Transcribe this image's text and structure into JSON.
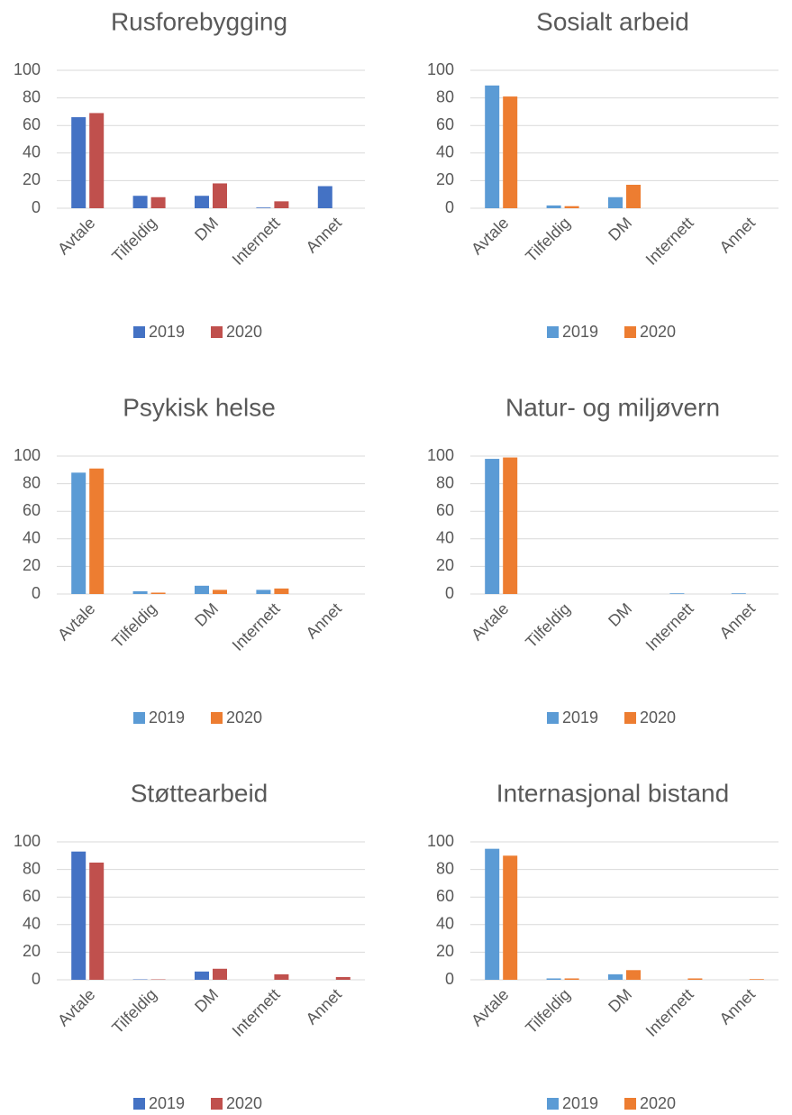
{
  "chart_data": [
    {
      "type": "bar",
      "title": "Rusforebygging",
      "categories": [
        "Avtale",
        "Tilfeldig",
        "DM",
        "Internett",
        "Annet"
      ],
      "series": [
        {
          "name": "2019",
          "color": "#4472c4",
          "values": [
            66,
            9,
            9,
            0.5,
            16
          ]
        },
        {
          "name": "2020",
          "color": "#c0504d",
          "values": [
            69,
            8,
            18,
            5,
            0
          ]
        }
      ],
      "ylim": [
        0,
        100
      ],
      "yticks": [
        0,
        20,
        40,
        60,
        80,
        100
      ],
      "grid": true
    },
    {
      "type": "bar",
      "title": "Sosialt arbeid",
      "categories": [
        "Avtale",
        "Tilfeldig",
        "DM",
        "Internett",
        "Annet"
      ],
      "series": [
        {
          "name": "2019",
          "color": "#5b9bd5",
          "values": [
            89,
            2,
            8,
            0,
            0
          ]
        },
        {
          "name": "2020",
          "color": "#ed7d31",
          "values": [
            81,
            1.5,
            17,
            0,
            0
          ]
        }
      ],
      "ylim": [
        0,
        100
      ],
      "yticks": [
        0,
        20,
        40,
        60,
        80,
        100
      ],
      "grid": true
    },
    {
      "type": "bar",
      "title": "Psykisk helse",
      "categories": [
        "Avtale",
        "Tilfeldig",
        "DM",
        "Internett",
        "Annet"
      ],
      "series": [
        {
          "name": "2019",
          "color": "#5b9bd5",
          "values": [
            88,
            2,
            6,
            3,
            0
          ]
        },
        {
          "name": "2020",
          "color": "#ed7d31",
          "values": [
            91,
            1,
            3,
            4,
            0
          ]
        }
      ],
      "ylim": [
        0,
        100
      ],
      "yticks": [
        0,
        20,
        40,
        60,
        80,
        100
      ],
      "grid": true
    },
    {
      "type": "bar",
      "title": "Natur- og miljøvern",
      "categories": [
        "Avtale",
        "Tilfeldig",
        "DM",
        "Internett",
        "Annet"
      ],
      "series": [
        {
          "name": "2019",
          "color": "#5b9bd5",
          "values": [
            98,
            0,
            0,
            0.5,
            0.5
          ]
        },
        {
          "name": "2020",
          "color": "#ed7d31",
          "values": [
            99,
            0,
            0,
            0,
            0
          ]
        }
      ],
      "ylim": [
        0,
        100
      ],
      "yticks": [
        0,
        20,
        40,
        60,
        80,
        100
      ],
      "grid": true
    },
    {
      "type": "bar",
      "title": "Støttearbeid",
      "categories": [
        "Avtale",
        "Tilfeldig",
        "DM",
        "Internett",
        "Annet"
      ],
      "series": [
        {
          "name": "2019",
          "color": "#4472c4",
          "values": [
            93,
            0.3,
            6,
            0,
            0
          ]
        },
        {
          "name": "2020",
          "color": "#c0504d",
          "values": [
            85,
            0.3,
            8,
            4,
            2
          ]
        }
      ],
      "ylim": [
        0,
        100
      ],
      "yticks": [
        0,
        20,
        40,
        60,
        80,
        100
      ],
      "grid": true
    },
    {
      "type": "bar",
      "title": "Internasjonal bistand",
      "categories": [
        "Avtale",
        "Tilfeldig",
        "DM",
        "Internett",
        "Annet"
      ],
      "series": [
        {
          "name": "2019",
          "color": "#5b9bd5",
          "values": [
            95,
            1,
            4,
            0,
            0
          ]
        },
        {
          "name": "2020",
          "color": "#ed7d31",
          "values": [
            90,
            1,
            7,
            1,
            0.5
          ]
        }
      ],
      "ylim": [
        0,
        100
      ],
      "yticks": [
        0,
        20,
        40,
        60,
        80,
        100
      ],
      "grid": true
    }
  ]
}
